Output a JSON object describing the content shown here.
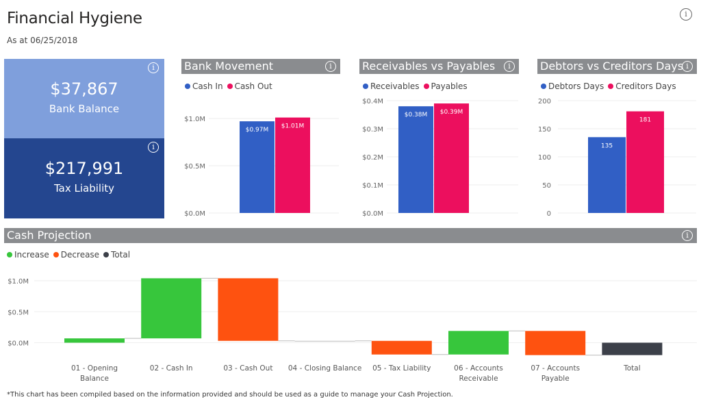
{
  "header": {
    "title": "Financial Hygiene",
    "subtitle": "As at 06/25/2018",
    "info_icon": "info-icon"
  },
  "kpis": [
    {
      "value": "$37,867",
      "label": "Bank Balance",
      "color": "#7f9fdc"
    },
    {
      "value": "$217,991",
      "label": "Tax Liability",
      "color": "#24468f"
    }
  ],
  "colors": {
    "blue": "#315fc5",
    "pink": "#ec0f5e",
    "increase": "#37c63c",
    "decrease": "#fe5210",
    "total": "#3c4049",
    "header_bg": "#8a8c8f"
  },
  "chart_data": [
    {
      "id": "bank",
      "type": "bar",
      "title": "Bank Movement",
      "ylim": [
        0,
        1.0
      ],
      "yticks": [
        {
          "v": 0,
          "l": "$0.0M"
        },
        {
          "v": 0.5,
          "l": "$0.5M"
        },
        {
          "v": 1.0,
          "l": "$1.0M"
        }
      ],
      "series": [
        {
          "name": "Cash In",
          "value": 0.97,
          "label": "$0.97M",
          "color": "#315fc5"
        },
        {
          "name": "Cash Out",
          "value": 1.01,
          "label": "$1.01M",
          "color": "#ec0f5e"
        }
      ]
    },
    {
      "id": "recv",
      "type": "bar",
      "title": "Receivables vs Payables",
      "ylim": [
        0,
        0.4
      ],
      "yticks": [
        {
          "v": 0,
          "l": "$0.0M"
        },
        {
          "v": 0.1,
          "l": "$0.1M"
        },
        {
          "v": 0.2,
          "l": "$0.2M"
        },
        {
          "v": 0.3,
          "l": "$0.3M"
        },
        {
          "v": 0.4,
          "l": "$0.4M"
        }
      ],
      "series": [
        {
          "name": "Receivables",
          "value": 0.38,
          "label": "$0.38M",
          "color": "#315fc5"
        },
        {
          "name": "Payables",
          "value": 0.39,
          "label": "$0.39M",
          "color": "#ec0f5e"
        }
      ]
    },
    {
      "id": "days",
      "type": "bar",
      "title": "Debtors vs Creditors Days",
      "ylim": [
        0,
        200
      ],
      "yticks": [
        {
          "v": 0,
          "l": "0"
        },
        {
          "v": 50,
          "l": "50"
        },
        {
          "v": 100,
          "l": "100"
        },
        {
          "v": 150,
          "l": "150"
        },
        {
          "v": 200,
          "l": "200"
        }
      ],
      "series": [
        {
          "name": "Debtors Days",
          "value": 135,
          "label": "135",
          "color": "#315fc5"
        },
        {
          "name": "Creditors Days",
          "value": 181,
          "label": "181",
          "color": "#ec0f5e"
        }
      ]
    },
    {
      "id": "cash",
      "type": "waterfall",
      "title": "Cash Projection",
      "ylim": [
        -0.2,
        1.05
      ],
      "yticks": [
        {
          "v": 0,
          "l": "$0.0M"
        },
        {
          "v": 0.5,
          "l": "$0.5M"
        },
        {
          "v": 1.0,
          "l": "$1.0M"
        }
      ],
      "legend": [
        {
          "name": "Increase",
          "color": "#37c63c"
        },
        {
          "name": "Decrease",
          "color": "#fe5210"
        },
        {
          "name": "Total",
          "color": "#3c4049"
        }
      ],
      "categories": [
        [
          "01 - Opening",
          "Balance"
        ],
        [
          "02 - Cash In"
        ],
        [
          "03 - Cash Out"
        ],
        [
          "04 - Closing Balance"
        ],
        [
          "05 - Tax Liability"
        ],
        [
          "06 - Accounts",
          "Receivable"
        ],
        [
          "07 - Accounts",
          "Payable"
        ],
        [
          "Total"
        ]
      ],
      "steps": [
        0.07,
        0.97,
        -1.01,
        0,
        -0.22,
        0.38,
        -0.39,
        "total"
      ]
    }
  ],
  "footnote": "*This chart has been compiled based on the information provided and should be used as a guide to manage your Cash Projection."
}
